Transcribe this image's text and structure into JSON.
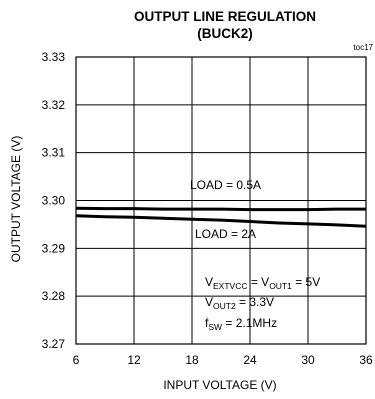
{
  "chart_data": {
    "type": "line",
    "title": "OUTPUT LINE REGULATION",
    "subtitle": "(BUCK2)",
    "figure_id": "toc17",
    "xlabel": "INPUT VOLTAGE (V)",
    "ylabel": "OUTPUT VOLTAGE (V)",
    "xlim": [
      6,
      36
    ],
    "ylim": [
      3.27,
      3.33
    ],
    "xticks": [
      "6",
      "12",
      "18",
      "24",
      "30",
      "36"
    ],
    "yticks": [
      "3.33",
      "3.32",
      "3.31",
      "3.30",
      "3.29",
      "3.28",
      "3.27"
    ],
    "grid": true,
    "series": [
      {
        "name": "LOAD = 0.5A",
        "x": [
          6,
          9,
          12,
          15,
          18,
          21,
          24,
          27,
          30,
          33,
          36
        ],
        "y": [
          3.2984,
          3.2983,
          3.2983,
          3.2982,
          3.2982,
          3.2982,
          3.2981,
          3.2981,
          3.2981,
          3.2982,
          3.2982
        ]
      },
      {
        "name": "LOAD = 2A",
        "x": [
          6,
          9,
          12,
          15,
          18,
          21,
          24,
          27,
          30,
          33,
          36
        ],
        "y": [
          3.2968,
          3.2966,
          3.2965,
          3.2963,
          3.2961,
          3.2959,
          3.2956,
          3.2953,
          3.2951,
          3.2949,
          3.2946
        ]
      }
    ],
    "annotations": {
      "line1": {
        "v": "V",
        "sub1": "EXTVCC",
        "eq": " = V",
        "sub2": "OUT1",
        "val": " = 5V"
      },
      "line2": {
        "v": "V",
        "sub1": "OUT2",
        "val": " = 3.3V"
      },
      "line3": {
        "v": "f",
        "sub1": "SW",
        "val": " = 2.1MHz"
      }
    }
  }
}
